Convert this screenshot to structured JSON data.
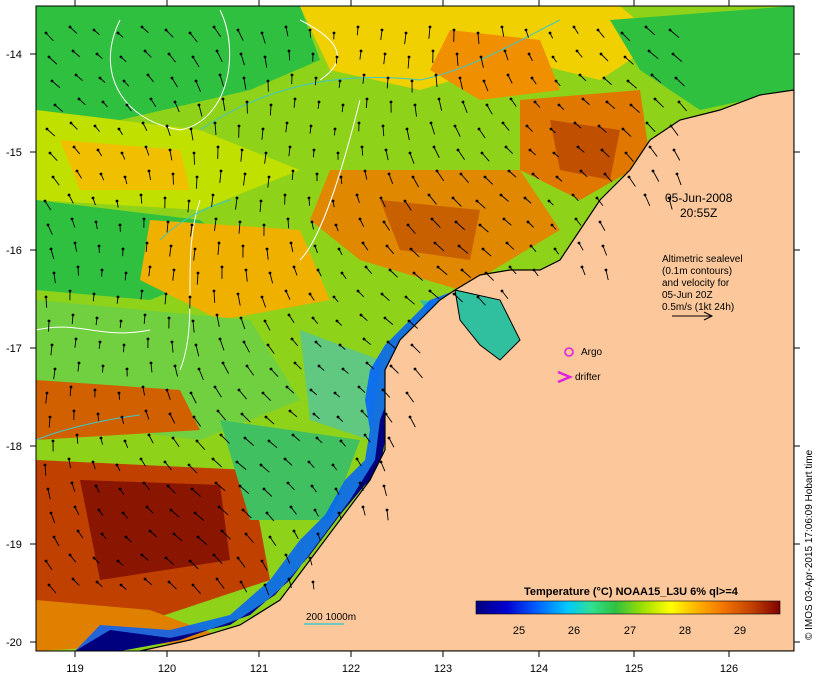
{
  "map": {
    "lat_ticks": [
      "-14",
      "-15",
      "-16",
      "-17",
      "-18",
      "-19",
      "-20"
    ],
    "lon_ticks": [
      "119",
      "120",
      "121",
      "122",
      "123",
      "124",
      "125",
      "126"
    ],
    "timestamp": {
      "date": "05-Jun-2008",
      "time": "20:55Z"
    },
    "altimetry_note": [
      "Altimetric sealevel",
      "(0.1m contours)",
      "and velocity for",
      "05-Jun 20Z",
      "0.5m/s (1kt 24h)"
    ],
    "legend": {
      "argo": "Argo",
      "drifter": "drifter"
    },
    "isobath_label": "200  1000m",
    "colorbar": {
      "title": "Temperature (°C) NOAA15_L3U 6% ql>=4",
      "ticks": [
        "25",
        "26",
        "27",
        "28",
        "29"
      ],
      "colors": [
        "#00007f",
        "#0000d0",
        "#0060ff",
        "#00c8ff",
        "#30e090",
        "#30c040",
        "#a0e000",
        "#ffff00",
        "#ffb000",
        "#f07000",
        "#c04000",
        "#800000"
      ]
    },
    "credit": "© IMOS 03-Apr-2015 17:06:09 Hobart time",
    "colors": {
      "land": "#fcc89b",
      "argo": "#e020e0",
      "drifter": "#e020e0",
      "isobath": "#40c8c8",
      "contour": "#ffffff"
    }
  }
}
